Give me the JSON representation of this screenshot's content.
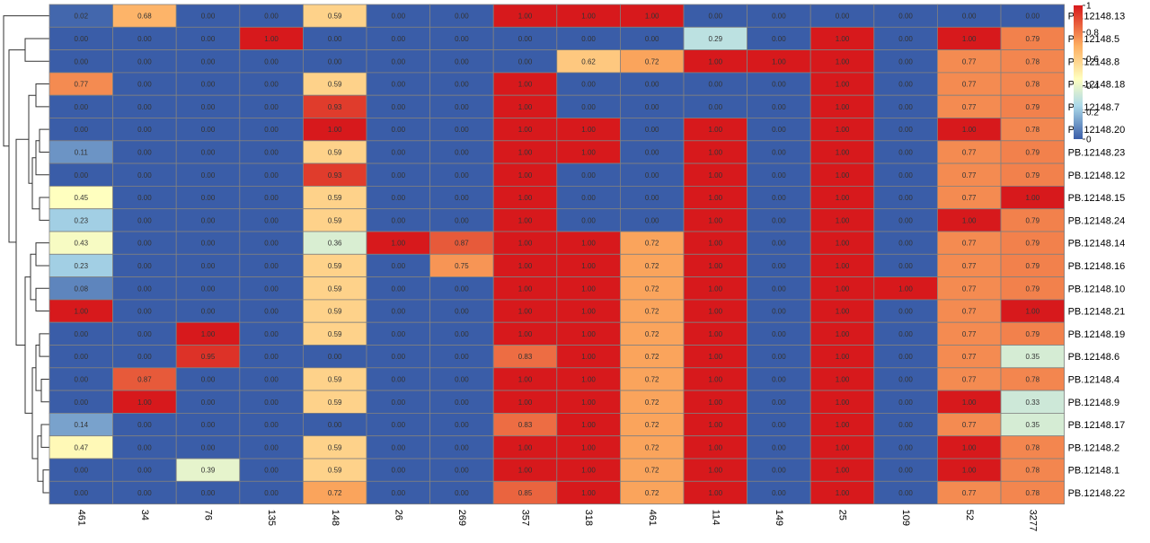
{
  "chart_data": {
    "type": "heatmap",
    "title": "",
    "xlabel": "",
    "ylabel": "",
    "columns": [
      "461",
      "34",
      "76",
      "135",
      "148",
      "26",
      "269",
      "357",
      "318",
      "461",
      "114",
      "149",
      "25",
      "109",
      "52",
      "3277"
    ],
    "rows": [
      "PB.12148.13",
      "PB.12148.5",
      "PB.12148.8",
      "PB.12148.18",
      "PB.12148.7",
      "PB.12148.20",
      "PB.12148.23",
      "PB.12148.12",
      "PB.12148.15",
      "PB.12148.24",
      "PB.12148.14",
      "PB.12148.16",
      "PB.12148.10",
      "PB.12148.21",
      "PB.12148.19",
      "PB.12148.6",
      "PB.12148.4",
      "PB.12148.9",
      "PB.12148.17",
      "PB.12148.2",
      "PB.12148.1",
      "PB.12148.22"
    ],
    "values": [
      [
        0.02,
        0.68,
        0.0,
        0.0,
        0.59,
        0.0,
        0.0,
        1.0,
        1.0,
        1.0,
        0.0,
        0.0,
        0.0,
        0.0,
        0.0,
        0.0
      ],
      [
        0.0,
        0.0,
        0.0,
        1.0,
        0.0,
        0.0,
        0.0,
        0.0,
        0.0,
        0.0,
        0.29,
        0.0,
        1.0,
        0.0,
        1.0,
        0.79
      ],
      [
        0.0,
        0.0,
        0.0,
        0.0,
        0.0,
        0.0,
        0.0,
        0.0,
        0.62,
        0.72,
        1.0,
        1.0,
        1.0,
        0.0,
        0.77,
        0.78
      ],
      [
        0.77,
        0.0,
        0.0,
        0.0,
        0.59,
        0.0,
        0.0,
        1.0,
        0.0,
        0.0,
        0.0,
        0.0,
        1.0,
        0.0,
        0.77,
        0.78
      ],
      [
        0.0,
        0.0,
        0.0,
        0.0,
        0.93,
        0.0,
        0.0,
        1.0,
        0.0,
        0.0,
        0.0,
        0.0,
        1.0,
        0.0,
        0.77,
        0.79
      ],
      [
        0.0,
        0.0,
        0.0,
        0.0,
        1.0,
        0.0,
        0.0,
        1.0,
        1.0,
        0.0,
        1.0,
        0.0,
        1.0,
        0.0,
        1.0,
        0.78
      ],
      [
        0.11,
        0.0,
        0.0,
        0.0,
        0.59,
        0.0,
        0.0,
        1.0,
        1.0,
        0.0,
        1.0,
        0.0,
        1.0,
        0.0,
        0.77,
        0.79
      ],
      [
        0.0,
        0.0,
        0.0,
        0.0,
        0.93,
        0.0,
        0.0,
        1.0,
        0.0,
        0.0,
        1.0,
        0.0,
        1.0,
        0.0,
        0.77,
        0.79
      ],
      [
        0.45,
        0.0,
        0.0,
        0.0,
        0.59,
        0.0,
        0.0,
        1.0,
        0.0,
        0.0,
        1.0,
        0.0,
        1.0,
        0.0,
        0.77,
        1.0
      ],
      [
        0.23,
        0.0,
        0.0,
        0.0,
        0.59,
        0.0,
        0.0,
        1.0,
        0.0,
        0.0,
        1.0,
        0.0,
        1.0,
        0.0,
        1.0,
        0.79
      ],
      [
        0.43,
        0.0,
        0.0,
        0.0,
        0.36,
        1.0,
        0.87,
        1.0,
        1.0,
        0.72,
        1.0,
        0.0,
        1.0,
        0.0,
        0.77,
        0.79
      ],
      [
        0.23,
        0.0,
        0.0,
        0.0,
        0.59,
        0.0,
        0.75,
        1.0,
        1.0,
        0.72,
        1.0,
        0.0,
        1.0,
        0.0,
        0.77,
        0.79
      ],
      [
        0.08,
        0.0,
        0.0,
        0.0,
        0.59,
        0.0,
        0.0,
        1.0,
        1.0,
        0.72,
        1.0,
        0.0,
        1.0,
        1.0,
        0.77,
        0.79
      ],
      [
        1.0,
        0.0,
        0.0,
        0.0,
        0.59,
        0.0,
        0.0,
        1.0,
        1.0,
        0.72,
        1.0,
        0.0,
        1.0,
        0.0,
        0.77,
        1.0
      ],
      [
        0.0,
        0.0,
        1.0,
        0.0,
        0.59,
        0.0,
        0.0,
        1.0,
        1.0,
        0.72,
        1.0,
        0.0,
        1.0,
        0.0,
        0.77,
        0.79
      ],
      [
        0.0,
        0.0,
        0.95,
        0.0,
        0.0,
        0.0,
        0.0,
        0.83,
        1.0,
        0.72,
        1.0,
        0.0,
        1.0,
        0.0,
        0.77,
        0.35
      ],
      [
        0.0,
        0.87,
        0.0,
        0.0,
        0.59,
        0.0,
        0.0,
        1.0,
        1.0,
        0.72,
        1.0,
        0.0,
        1.0,
        0.0,
        0.77,
        0.78
      ],
      [
        0.0,
        1.0,
        0.0,
        0.0,
        0.59,
        0.0,
        0.0,
        1.0,
        1.0,
        0.72,
        1.0,
        0.0,
        1.0,
        0.0,
        1.0,
        0.33
      ],
      [
        0.14,
        0.0,
        0.0,
        0.0,
        0.0,
        0.0,
        0.0,
        0.83,
        1.0,
        0.72,
        1.0,
        0.0,
        1.0,
        0.0,
        0.77,
        0.35
      ],
      [
        0.47,
        0.0,
        0.0,
        0.0,
        0.59,
        0.0,
        0.0,
        1.0,
        1.0,
        0.72,
        1.0,
        0.0,
        1.0,
        0.0,
        1.0,
        0.78
      ],
      [
        0.0,
        0.0,
        0.39,
        0.0,
        0.59,
        0.0,
        0.0,
        1.0,
        1.0,
        0.72,
        1.0,
        0.0,
        1.0,
        0.0,
        1.0,
        0.78
      ],
      [
        0.0,
        0.0,
        0.0,
        0.0,
        0.72,
        0.0,
        0.0,
        0.85,
        1.0,
        0.72,
        1.0,
        0.0,
        1.0,
        0.0,
        0.77,
        0.78
      ]
    ],
    "zlim": [
      0,
      1
    ],
    "legend": {
      "position": "right",
      "ticks": [
        0,
        0.2,
        0.4,
        0.6,
        0.8,
        1
      ],
      "tick_labels": [
        "0",
        "0.2",
        "0.4",
        "0.6",
        "0.8",
        "1"
      ]
    },
    "colors": {
      "low": "#3a5da8",
      "mid_low": "#e0f3f8",
      "mid": "#ffffbf",
      "mid_high": "#fdae61",
      "high": "#d7191c",
      "gridline": "#808080",
      "dendrogram": "#333333"
    },
    "row_dendrogram": true
  }
}
